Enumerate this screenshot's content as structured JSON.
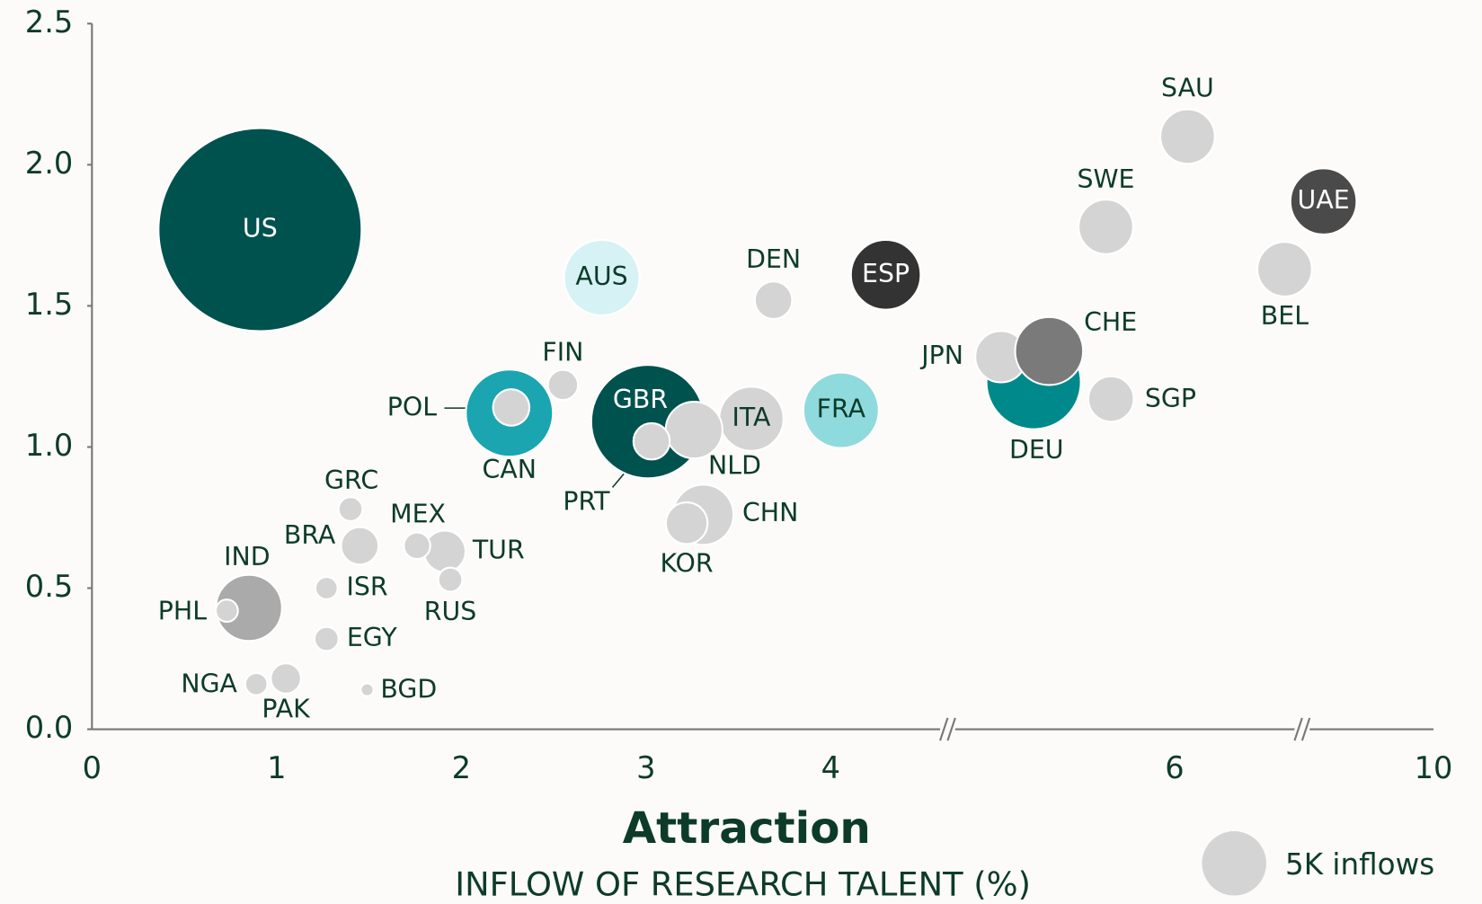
{
  "chart_data": {
    "type": "bubble",
    "x_label": "Attraction",
    "x_sublabel": "INFLOW OF RESEARCH TALENT (%)",
    "xticks": [
      0,
      1,
      2,
      3,
      4,
      6,
      10
    ],
    "xlim": [
      0,
      10
    ],
    "xbreaks": [
      4.68,
      7.97
    ],
    "ylim": [
      0,
      2.5
    ],
    "yticks": [
      {
        "value": 0,
        "label": "0.0"
      },
      {
        "value": 0.5,
        "label": "0.5"
      },
      {
        "value": 1,
        "label": "1.0"
      },
      {
        "value": 1.5,
        "label": "1.5"
      },
      {
        "value": 2,
        "label": "2.0"
      },
      {
        "value": 2.5,
        "label": "2.5"
      }
    ],
    "size_legend": {
      "value": 5,
      "label": "5K inflows",
      "color": "#d4d4d4"
    },
    "points": [
      {
        "label": "US",
        "x": 0.91,
        "y": 1.77,
        "size": 50,
        "color": "#00524e"
      },
      {
        "label": "GBR",
        "x": 3.01,
        "y": 1.09,
        "size": 15.6,
        "color": "#00524e"
      },
      {
        "label": "DEU",
        "x": 5.18,
        "y": 1.23,
        "size": 10.8,
        "color": "#00898a"
      },
      {
        "label": "CAN",
        "x": 2.26,
        "y": 1.12,
        "size": 9.2,
        "color": "#1aa5b0"
      },
      {
        "label": "AUS",
        "x": 2.76,
        "y": 1.6,
        "size": 6.9,
        "color": "#d6f2f4"
      },
      {
        "label": "FRA",
        "x": 4.06,
        "y": 1.13,
        "size": 6.9,
        "color": "#8fdadd"
      },
      {
        "label": "ESP",
        "x": 4.32,
        "y": 1.61,
        "size": 5.9,
        "color": "#333333"
      },
      {
        "label": "JPN",
        "x": 4.99,
        "y": 1.32,
        "size": 3.2,
        "color": "#d4d4d4"
      },
      {
        "label": "CHE",
        "x": 5.27,
        "y": 1.34,
        "size": 5.6,
        "color": "#7a7a7a"
      },
      {
        "label": "UAE",
        "x": 8.3,
        "y": 1.87,
        "size": 5.3,
        "color": "#4a4a4a"
      },
      {
        "label": "ITA",
        "x": 3.57,
        "y": 1.1,
        "size": 5,
        "color": "#d4d4d4"
      },
      {
        "label": "CHN",
        "x": 3.31,
        "y": 0.76,
        "size": 4.4,
        "color": "#d4d4d4"
      },
      {
        "label": "IND",
        "x": 0.85,
        "y": 0.43,
        "size": 5.3,
        "color": "#aaaaaa"
      },
      {
        "label": "NLD",
        "x": 3.26,
        "y": 1.06,
        "size": 3.9,
        "color": "#d4d4d4"
      },
      {
        "label": "SAU",
        "x": 6.2,
        "y": 2.1,
        "size": 3.6,
        "color": "#d4d4d4"
      },
      {
        "label": "BEL",
        "x": 7.7,
        "y": 1.63,
        "size": 3.6,
        "color": "#d4d4d4"
      },
      {
        "label": "SWE",
        "x": 5.6,
        "y": 1.78,
        "size": 3.6,
        "color": "#d4d4d4"
      },
      {
        "label": "SGP",
        "x": 5.63,
        "y": 1.17,
        "size": 2.5,
        "color": "#d4d4d4"
      },
      {
        "label": "TUR",
        "x": 1.91,
        "y": 0.63,
        "size": 2.1,
        "color": "#d4d4d4"
      },
      {
        "label": "KOR",
        "x": 3.22,
        "y": 0.73,
        "size": 2.1,
        "color": "#d4d4d4"
      },
      {
        "label": "FIN",
        "x": 2.55,
        "y": 1.22,
        "size": 1.1,
        "color": "#d4d4d4"
      },
      {
        "label": "POL",
        "x": 2.27,
        "y": 1.14,
        "size": 1.6,
        "color": "#d4d4d4"
      },
      {
        "label": "PRT",
        "x": 3.03,
        "y": 1.02,
        "size": 1.6,
        "color": "#d4d4d4"
      },
      {
        "label": "BRA",
        "x": 1.45,
        "y": 0.65,
        "size": 1.7,
        "color": "#d4d4d4"
      },
      {
        "label": "DEN",
        "x": 3.69,
        "y": 1.52,
        "size": 1.7,
        "color": "#d4d4d4"
      },
      {
        "label": "RUS",
        "x": 1.94,
        "y": 0.53,
        "size": 0.7,
        "color": "#d4d4d4"
      },
      {
        "label": "MEX",
        "x": 1.76,
        "y": 0.65,
        "size": 0.85,
        "color": "#d4d4d4"
      },
      {
        "label": "GRC",
        "x": 1.4,
        "y": 0.78,
        "size": 0.7,
        "color": "#d4d4d4"
      },
      {
        "label": "ISR",
        "x": 1.27,
        "y": 0.5,
        "size": 0.6,
        "color": "#d4d4d4"
      },
      {
        "label": "EGY",
        "x": 1.27,
        "y": 0.32,
        "size": 0.7,
        "color": "#d4d4d4"
      },
      {
        "label": "PAK",
        "x": 1.05,
        "y": 0.18,
        "size": 1.1,
        "color": "#d4d4d4"
      },
      {
        "label": "NGA",
        "x": 0.89,
        "y": 0.16,
        "size": 0.6,
        "color": "#d4d4d4"
      },
      {
        "label": "PHL",
        "x": 0.73,
        "y": 0.42,
        "size": 0.6,
        "color": "#d4d4d4"
      },
      {
        "label": "BGD",
        "x": 1.49,
        "y": 0.14,
        "size": 0.2,
        "color": "#d4d4d4"
      }
    ]
  }
}
